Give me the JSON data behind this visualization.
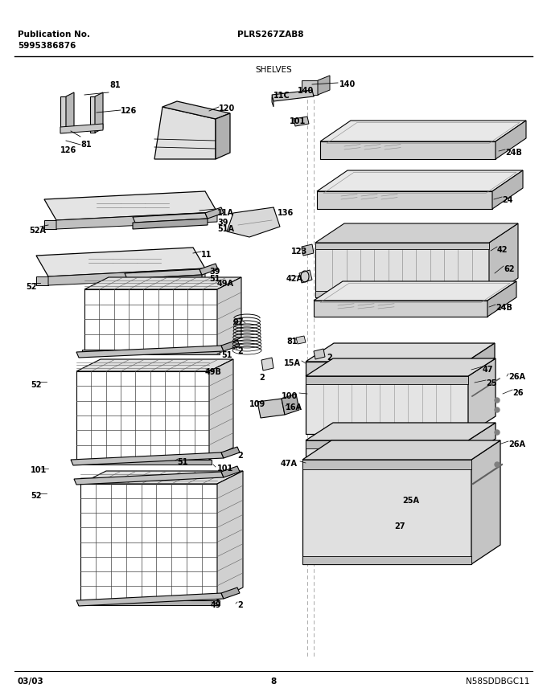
{
  "title": "PLRS267ZAB8",
  "subtitle": "SHELVES",
  "pub_label": "Publication No.",
  "pub_number": "5995386876",
  "date": "03/03",
  "page": "8",
  "footer_image": "N58SDDBGC11",
  "bg_color": "#ffffff",
  "lc": "#000000",
  "fig_width": 6.8,
  "fig_height": 8.71,
  "dpi": 100
}
